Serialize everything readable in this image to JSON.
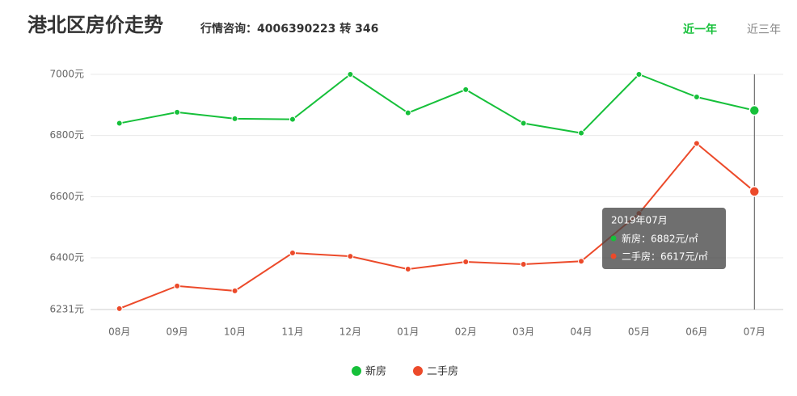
{
  "chart_data": {
    "type": "line",
    "title": "港北区房价走势",
    "subtitle": "行情咨询：4006390223 转 346",
    "tabs": [
      "近一年",
      "近三年"
    ],
    "categories": [
      "08月",
      "09月",
      "10月",
      "11月",
      "12月",
      "01月",
      "02月",
      "03月",
      "04月",
      "05月",
      "06月",
      "07月"
    ],
    "series": [
      {
        "name": "新房",
        "color": "#16c03a",
        "values": [
          6840,
          6876,
          6855,
          6853,
          7000,
          6874,
          6950,
          6840,
          6808,
          7000,
          6926,
          6882
        ]
      },
      {
        "name": "二手房",
        "color": "#ec4a2a",
        "values": [
          6234,
          6308,
          6292,
          6416,
          6405,
          6363,
          6387,
          6379,
          6389,
          6545,
          6774,
          6617
        ]
      }
    ],
    "ylim": [
      6231,
      7000
    ],
    "yticks": [
      {
        "value": 6231,
        "label": "6231元"
      },
      {
        "value": 6400,
        "label": "6400元"
      },
      {
        "value": 6600,
        "label": "6600元"
      },
      {
        "value": 6800,
        "label": "6800元"
      },
      {
        "value": 7000,
        "label": "7000元"
      }
    ],
    "grid": true,
    "tooltip": {
      "title": "2019年07月",
      "lines": [
        "新房：6882元/㎡",
        "二手房：6617元/㎡"
      ]
    }
  }
}
